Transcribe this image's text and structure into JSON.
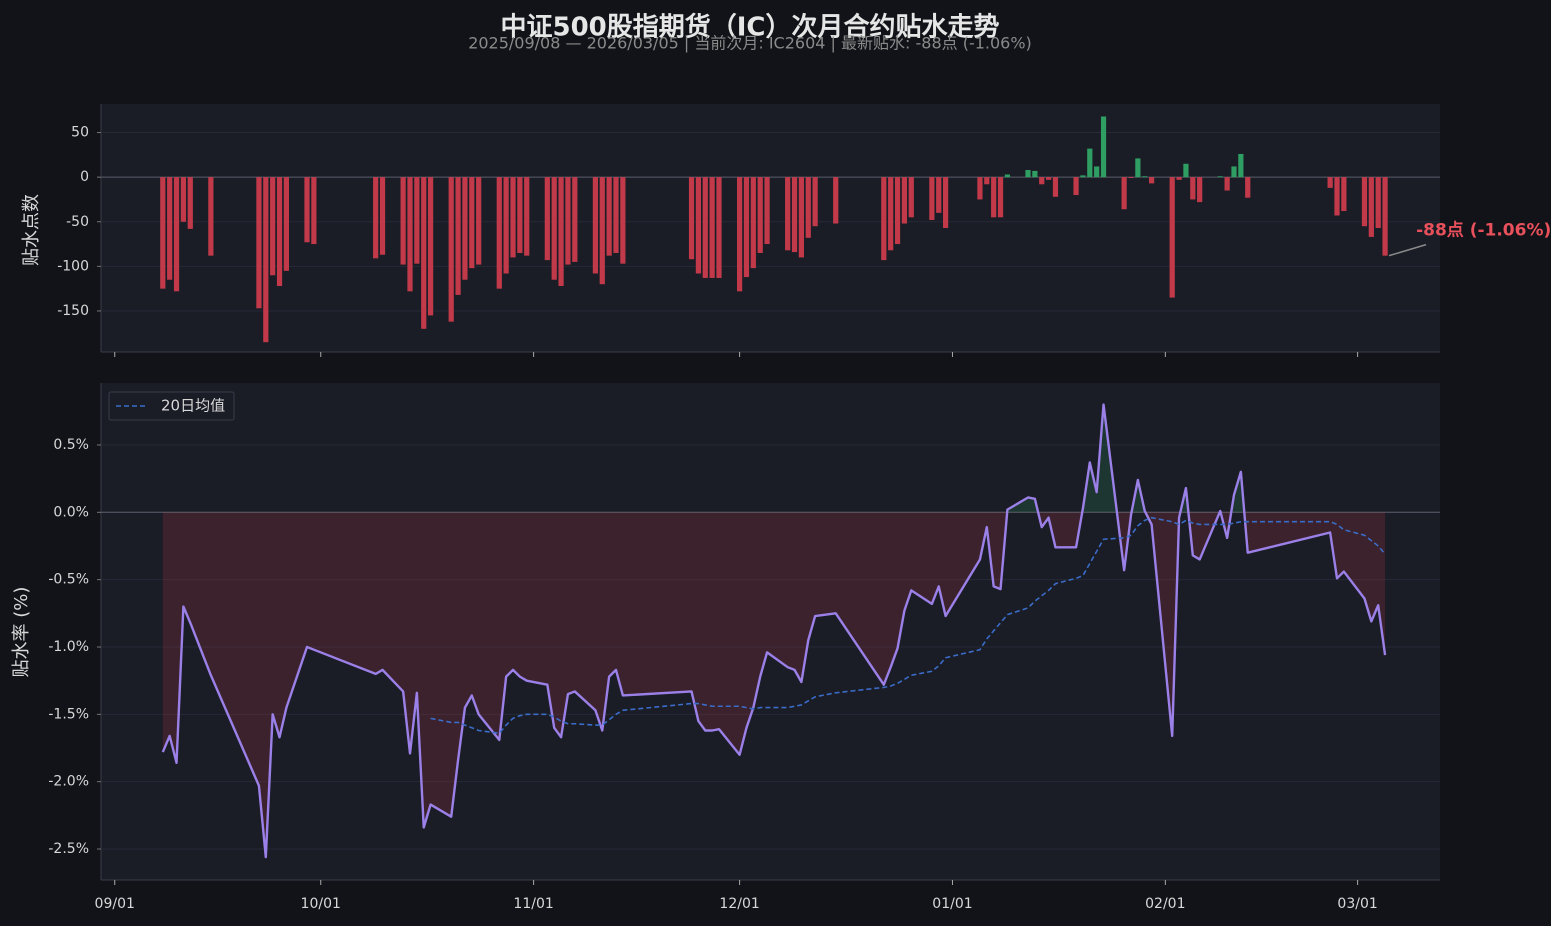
{
  "chart_data": [
    {
      "type": "bar",
      "title": "中证500股指期货（IC）次月合约贴水走势",
      "subtitle": "2025/09/08 — 2026/03/05  |  当前次月: IC2604  |  最新贴水: -88点 (-1.06%)",
      "y_label": "贴水点数",
      "annotation": "-88点 (-1.06%)",
      "colors": {
        "positive": "#2f9e63",
        "negative": "#c23a4a"
      },
      "xlim": [
        "08/30",
        "03/13"
      ],
      "ylim": [
        -196,
        82
      ],
      "yticks": [
        -150,
        -100,
        -50,
        0,
        50
      ],
      "grid": true,
      "x": [
        "09/08",
        "09/09",
        "09/10",
        "09/11",
        "09/12",
        "09/15",
        "09/22",
        "09/23",
        "09/24",
        "09/25",
        "09/26",
        "09/29",
        "09/30",
        "10/09",
        "10/10",
        "10/13",
        "10/14",
        "10/15",
        "10/16",
        "10/17",
        "10/20",
        "10/21",
        "10/22",
        "10/23",
        "10/24",
        "10/27",
        "10/28",
        "10/29",
        "10/30",
        "10/31",
        "11/03",
        "11/04",
        "11/05",
        "11/06",
        "11/07",
        "11/10",
        "11/11",
        "11/12",
        "11/13",
        "11/14",
        "11/24",
        "11/25",
        "11/26",
        "11/27",
        "11/28",
        "12/01",
        "12/02",
        "12/03",
        "12/04",
        "12/05",
        "12/08",
        "12/09",
        "12/10",
        "12/11",
        "12/12",
        "12/15",
        "12/22",
        "12/23",
        "12/24",
        "12/25",
        "12/26",
        "12/29",
        "12/30",
        "12/31",
        "01/05",
        "01/06",
        "01/07",
        "01/08",
        "01/09",
        "01/12",
        "01/13",
        "01/14",
        "01/15",
        "01/16",
        "01/19",
        "01/20",
        "01/21",
        "01/22",
        "01/23",
        "01/26",
        "01/27",
        "01/28",
        "01/29",
        "01/30",
        "02/02",
        "02/03",
        "02/04",
        "02/05",
        "02/06",
        "02/09",
        "02/10",
        "02/11",
        "02/12",
        "02/13",
        "02/25",
        "02/26",
        "02/27",
        "03/02",
        "03/03",
        "03/04",
        "03/05"
      ],
      "values": [
        -125,
        -115,
        -128,
        -50,
        -58,
        -88,
        -147,
        -185,
        -110,
        -122,
        -105,
        -73,
        -75,
        -91,
        -87,
        -98,
        -128,
        -97,
        -170,
        -155,
        -162,
        -132,
        -115,
        -102,
        -98,
        -125,
        -108,
        -90,
        -85,
        -88,
        -93,
        -115,
        -122,
        -98,
        -95,
        -108,
        -120,
        -88,
        -85,
        -97,
        -92,
        -108,
        -113,
        -113,
        -113,
        -128,
        -112,
        -102,
        -85,
        -75,
        -82,
        -84,
        -90,
        -68,
        -55,
        -52,
        -93,
        -82,
        -75,
        -52,
        -45,
        -48,
        -40,
        -57,
        -25,
        -8,
        -45,
        -45,
        3,
        8,
        7,
        -8,
        -3,
        -22,
        -20,
        2,
        32,
        12,
        68,
        -36,
        -1,
        21,
        1,
        -7,
        -135,
        -3,
        15,
        -25,
        -28,
        1,
        -15,
        12,
        26,
        -23,
        -12,
        -43,
        -38,
        -55,
        -67,
        -57,
        -88
      ]
    },
    {
      "type": "line",
      "y_label": "贴水率 (%)",
      "fill": {
        "positive": "#2f9e63",
        "negative": "#c23a4a"
      },
      "xlim": [
        "08/30",
        "03/13"
      ],
      "ylim": [
        -2.73,
        0.96
      ],
      "xticks": [
        "09/01",
        "10/01",
        "11/01",
        "12/01",
        "01/01",
        "02/01",
        "03/01"
      ],
      "yticks": [
        {
          "value": -2.5,
          "label": "-2.5%"
        },
        {
          "value": -2.0,
          "label": "-2.0%"
        },
        {
          "value": -1.5,
          "label": "-1.5%"
        },
        {
          "value": -1.0,
          "label": "-1.0%"
        },
        {
          "value": -0.5,
          "label": "-0.5%"
        },
        {
          "value": 0.0,
          "label": "0.0%"
        },
        {
          "value": 0.5,
          "label": "0.5%"
        }
      ],
      "grid": true,
      "legend": "upper left",
      "x": [
        "09/08",
        "09/09",
        "09/10",
        "09/11",
        "09/12",
        "09/15",
        "09/22",
        "09/23",
        "09/24",
        "09/25",
        "09/26",
        "09/29",
        "09/30",
        "10/09",
        "10/10",
        "10/13",
        "10/14",
        "10/15",
        "10/16",
        "10/17",
        "10/20",
        "10/21",
        "10/22",
        "10/23",
        "10/24",
        "10/27",
        "10/28",
        "10/29",
        "10/30",
        "10/31",
        "11/03",
        "11/04",
        "11/05",
        "11/06",
        "11/07",
        "11/10",
        "11/11",
        "11/12",
        "11/13",
        "11/14",
        "11/24",
        "11/25",
        "11/26",
        "11/27",
        "11/28",
        "12/01",
        "12/02",
        "12/03",
        "12/04",
        "12/05",
        "12/08",
        "12/09",
        "12/10",
        "12/11",
        "12/12",
        "12/15",
        "12/22",
        "12/23",
        "12/24",
        "12/25",
        "12/26",
        "12/29",
        "12/30",
        "12/31",
        "01/05",
        "01/06",
        "01/07",
        "01/08",
        "01/09",
        "01/12",
        "01/13",
        "01/14",
        "01/15",
        "01/16",
        "01/19",
        "01/20",
        "01/21",
        "01/22",
        "01/23",
        "01/26",
        "01/27",
        "01/28",
        "01/29",
        "01/30",
        "02/02",
        "02/03",
        "02/04",
        "02/05",
        "02/06",
        "02/09",
        "02/10",
        "02/11",
        "02/12",
        "02/13",
        "02/25",
        "02/26",
        "02/27",
        "03/02",
        "03/03",
        "03/04",
        "03/05"
      ],
      "series": [
        {
          "color": "#9b80e8",
          "values": [
            -1.78,
            -1.66,
            -1.86,
            -0.7,
            -0.82,
            -1.21,
            -2.03,
            -2.56,
            -1.5,
            -1.67,
            -1.45,
            -1.0,
            -1.02,
            -1.2,
            -1.17,
            -1.33,
            -1.79,
            -1.34,
            -2.34,
            -2.17,
            -2.26,
            -1.84,
            -1.45,
            -1.36,
            -1.5,
            -1.69,
            -1.22,
            -1.17,
            -1.22,
            -1.25,
            -1.28,
            -1.6,
            -1.67,
            -1.35,
            -1.33,
            -1.47,
            -1.62,
            -1.22,
            -1.17,
            -1.36,
            -1.33,
            -1.55,
            -1.62,
            -1.62,
            -1.61,
            -1.8,
            -1.6,
            -1.45,
            -1.22,
            -1.04,
            -1.15,
            -1.17,
            -1.26,
            -0.95,
            -0.77,
            -0.75,
            -1.28,
            -1.15,
            -1.01,
            -0.73,
            -0.58,
            -0.68,
            -0.55,
            -0.77,
            -0.35,
            -0.11,
            -0.55,
            -0.57,
            0.02,
            0.11,
            0.1,
            -0.11,
            -0.04,
            -0.26,
            -0.26,
            0.03,
            0.37,
            0.15,
            0.8,
            -0.43,
            -0.02,
            0.24,
            0.01,
            -0.09,
            -1.66,
            -0.04,
            0.18,
            -0.32,
            -0.35,
            0.01,
            -0.19,
            0.13,
            0.3,
            -0.3,
            -0.15,
            -0.49,
            -0.44,
            -0.64,
            -0.81,
            -0.69,
            -1.06
          ]
        },
        {
          "name": "20日均值",
          "color": "#3a6cc8",
          "dashed": true,
          "values": [
            null,
            null,
            null,
            null,
            null,
            null,
            null,
            null,
            null,
            null,
            null,
            null,
            null,
            null,
            null,
            null,
            null,
            null,
            null,
            -1.53,
            -1.56,
            -1.56,
            -1.58,
            -1.6,
            -1.62,
            -1.64,
            -1.58,
            -1.53,
            -1.51,
            -1.5,
            -1.5,
            -1.52,
            -1.55,
            -1.57,
            -1.57,
            -1.58,
            -1.58,
            -1.54,
            -1.5,
            -1.47,
            -1.42,
            -1.42,
            -1.43,
            -1.44,
            -1.44,
            -1.44,
            -1.45,
            -1.46,
            -1.45,
            -1.45,
            -1.45,
            -1.44,
            -1.43,
            -1.4,
            -1.37,
            -1.34,
            -1.3,
            -1.29,
            -1.27,
            -1.24,
            -1.21,
            -1.18,
            -1.14,
            -1.08,
            -1.02,
            -0.94,
            -0.88,
            -0.82,
            -0.76,
            -0.71,
            -0.66,
            -0.62,
            -0.58,
            -0.53,
            -0.49,
            -0.47,
            -0.38,
            -0.29,
            -0.2,
            -0.19,
            -0.17,
            -0.1,
            -0.06,
            -0.04,
            -0.07,
            -0.09,
            -0.06,
            -0.08,
            -0.09,
            -0.09,
            -0.09,
            -0.08,
            -0.07,
            -0.07,
            -0.07,
            -0.09,
            -0.13,
            -0.17,
            -0.21,
            -0.25,
            -0.31
          ]
        }
      ]
    }
  ]
}
